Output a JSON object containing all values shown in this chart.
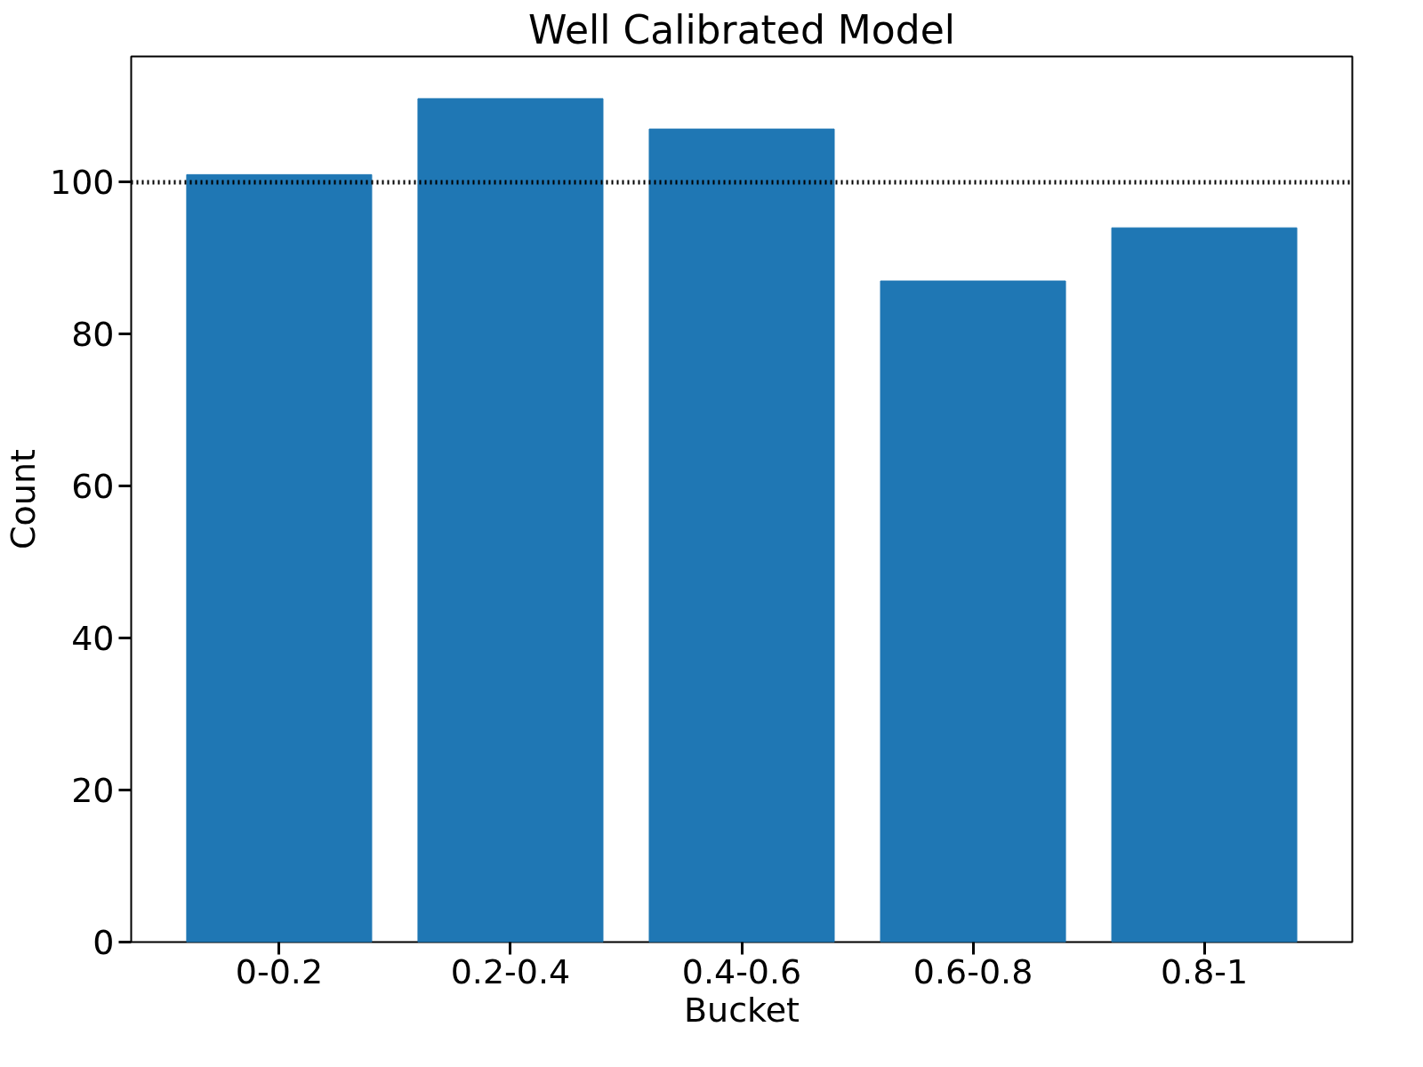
{
  "chart_data": {
    "type": "bar",
    "title": "Well Calibrated Model",
    "xlabel": "Bucket",
    "ylabel": "Count",
    "categories": [
      "0-0.2",
      "0.2-0.4",
      "0.4-0.6",
      "0.6-0.8",
      "0.8-1"
    ],
    "values": [
      101,
      111,
      107,
      87,
      94
    ],
    "color": "#1f77b4",
    "ylim": [
      0,
      116.55
    ],
    "yticks": [
      0,
      20,
      40,
      60,
      80,
      100
    ],
    "grid": false,
    "ref_lines": [
      {
        "axis": "y",
        "value": 100,
        "color": "#000000",
        "line_style": "dotted"
      }
    ]
  }
}
